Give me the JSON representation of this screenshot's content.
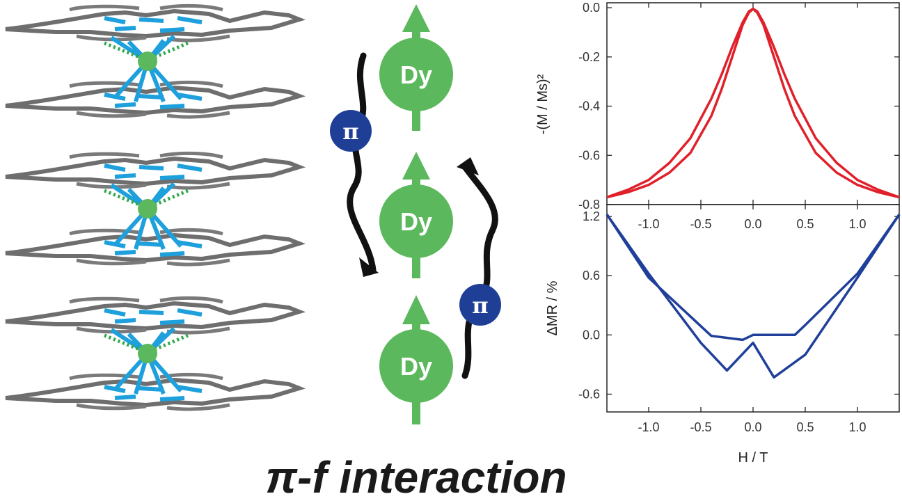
{
  "illustration": {
    "ion_label": "Dy",
    "pi_label": "π",
    "colors": {
      "dy_green": "#5cb85c",
      "pi_blue": "#1f3f96",
      "ligand_gray": "#6e6e6e",
      "bond_blue": "#1ea0dc"
    }
  },
  "caption": "π-f interaction",
  "chart_data": [
    {
      "type": "line",
      "title": "",
      "xlabel": "",
      "ylabel": "-(M / Ms)²",
      "xlim": [
        -1.4,
        1.4
      ],
      "ylim": [
        -0.8,
        0.02
      ],
      "x_ticks": [
        "-1.0",
        "-0.5",
        "0.0",
        "0.5",
        "1.0"
      ],
      "y_ticks": [
        "0.0",
        "-0.2",
        "-0.4",
        "-0.6",
        "-0.8"
      ],
      "color": "#e0202a",
      "series": [
        {
          "x": [
            -1.4,
            -1.2,
            -1.0,
            -0.8,
            -0.6,
            -0.4,
            -0.3,
            -0.2,
            -0.1,
            -0.04,
            0.0,
            0.04,
            0.1,
            0.2,
            0.3,
            0.4,
            0.6,
            0.8,
            1.0,
            1.2,
            1.4
          ],
          "y": [
            -0.77,
            -0.74,
            -0.7,
            -0.63,
            -0.53,
            -0.37,
            -0.27,
            -0.16,
            -0.06,
            -0.015,
            -0.005,
            -0.02,
            -0.07,
            -0.2,
            -0.33,
            -0.44,
            -0.59,
            -0.67,
            -0.72,
            -0.75,
            -0.77
          ]
        },
        {
          "x": [
            -1.4,
            -1.2,
            -1.0,
            -0.8,
            -0.6,
            -0.4,
            -0.3,
            -0.2,
            -0.1,
            -0.04,
            0.0,
            0.04,
            0.1,
            0.2,
            0.3,
            0.4,
            0.6,
            0.8,
            1.0,
            1.2,
            1.4
          ],
          "y": [
            -0.77,
            -0.75,
            -0.72,
            -0.67,
            -0.59,
            -0.44,
            -0.33,
            -0.2,
            -0.07,
            -0.02,
            -0.005,
            -0.015,
            -0.06,
            -0.16,
            -0.27,
            -0.37,
            -0.53,
            -0.63,
            -0.7,
            -0.74,
            -0.77
          ]
        }
      ]
    },
    {
      "type": "line",
      "title": "",
      "xlabel": "H / T",
      "ylabel": "ΔMR / %",
      "xlim": [
        -1.4,
        1.4
      ],
      "ylim": [
        -0.78,
        1.32
      ],
      "x_ticks": [
        "-1.0",
        "-0.5",
        "0.0",
        "0.5",
        "1.0"
      ],
      "y_ticks": [
        "1.2",
        "0.6",
        "0.0",
        "-0.6"
      ],
      "color": "#1f3f9a",
      "series": [
        {
          "x": [
            -1.4,
            -1.0,
            -0.5,
            -0.25,
            0.0,
            0.2,
            0.5,
            1.0,
            1.4
          ],
          "y": [
            1.22,
            0.62,
            -0.08,
            -0.36,
            -0.08,
            -0.43,
            -0.2,
            0.58,
            1.22
          ]
        },
        {
          "x": [
            -1.4,
            -1.0,
            -0.4,
            -0.1,
            0.0,
            0.4,
            0.5,
            1.0,
            1.4
          ],
          "y": [
            1.22,
            0.58,
            -0.01,
            -0.05,
            0.0,
            0.0,
            0.1,
            0.62,
            1.22
          ]
        }
      ]
    }
  ]
}
